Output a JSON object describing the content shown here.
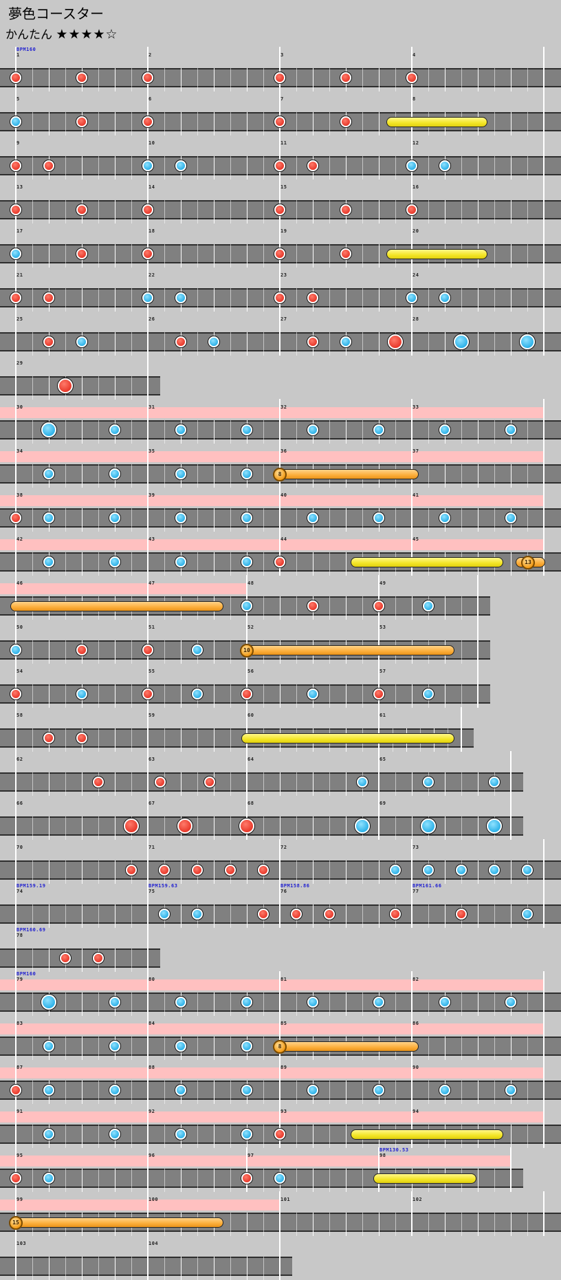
{
  "song": {
    "title": "夢色コースター",
    "difficulty": "かんたん",
    "stars": "★★★★☆"
  },
  "systems": [
    {
      "measures": [
        "1",
        "2",
        "3",
        "4"
      ],
      "bpm": [
        {
          "m": 0,
          "text": "BPM160"
        }
      ],
      "notes": [
        {
          "m": 0,
          "p": 0,
          "k": "d"
        },
        {
          "m": 0,
          "p": 0.5,
          "k": "d"
        },
        {
          "m": 1,
          "p": 0,
          "k": "d"
        },
        {
          "m": 2,
          "p": 0,
          "k": "d"
        },
        {
          "m": 2,
          "p": 0.5,
          "k": "d"
        },
        {
          "m": 3,
          "p": 0,
          "k": "d"
        }
      ]
    },
    {
      "measures": [
        "5",
        "6",
        "7",
        "8"
      ],
      "notes": [
        {
          "m": 0,
          "p": 0,
          "k": "k"
        },
        {
          "m": 0,
          "p": 0.5,
          "k": "d"
        },
        {
          "m": 1,
          "p": 0,
          "k": "d"
        },
        {
          "m": 2,
          "p": 0,
          "k": "d"
        },
        {
          "m": 2,
          "p": 0.5,
          "k": "d"
        }
      ],
      "rolls": [
        {
          "m": 2,
          "p": 0.85,
          "len": 0.68,
          "c": "y"
        }
      ]
    },
    {
      "measures": [
        "9",
        "10",
        "11",
        "12"
      ],
      "notes": [
        {
          "m": 0,
          "p": 0,
          "k": "d"
        },
        {
          "m": 0,
          "p": 0.25,
          "k": "d"
        },
        {
          "m": 1,
          "p": 0,
          "k": "k"
        },
        {
          "m": 1,
          "p": 0.25,
          "k": "k"
        },
        {
          "m": 2,
          "p": 0,
          "k": "d"
        },
        {
          "m": 2,
          "p": 0.25,
          "k": "d"
        },
        {
          "m": 3,
          "p": 0,
          "k": "k"
        },
        {
          "m": 3,
          "p": 0.25,
          "k": "k"
        }
      ]
    },
    {
      "measures": [
        "13",
        "14",
        "15",
        "16"
      ],
      "notes": [
        {
          "m": 0,
          "p": 0,
          "k": "d"
        },
        {
          "m": 0,
          "p": 0.5,
          "k": "d"
        },
        {
          "m": 1,
          "p": 0,
          "k": "d"
        },
        {
          "m": 2,
          "p": 0,
          "k": "d"
        },
        {
          "m": 2,
          "p": 0.5,
          "k": "d"
        },
        {
          "m": 3,
          "p": 0,
          "k": "d"
        }
      ]
    },
    {
      "measures": [
        "17",
        "18",
        "19",
        "20"
      ],
      "notes": [
        {
          "m": 0,
          "p": 0,
          "k": "k"
        },
        {
          "m": 0,
          "p": 0.5,
          "k": "d"
        },
        {
          "m": 1,
          "p": 0,
          "k": "d"
        },
        {
          "m": 2,
          "p": 0,
          "k": "d"
        },
        {
          "m": 2,
          "p": 0.5,
          "k": "d"
        }
      ],
      "rolls": [
        {
          "m": 2,
          "p": 0.85,
          "len": 0.68,
          "c": "y"
        }
      ]
    },
    {
      "measures": [
        "21",
        "22",
        "23",
        "24"
      ],
      "notes": [
        {
          "m": 0,
          "p": 0,
          "k": "d"
        },
        {
          "m": 0,
          "p": 0.25,
          "k": "d"
        },
        {
          "m": 1,
          "p": 0,
          "k": "k"
        },
        {
          "m": 1,
          "p": 0.25,
          "k": "k"
        },
        {
          "m": 2,
          "p": 0,
          "k": "d"
        },
        {
          "m": 2,
          "p": 0.25,
          "k": "d"
        },
        {
          "m": 3,
          "p": 0,
          "k": "k"
        },
        {
          "m": 3,
          "p": 0.25,
          "k": "k"
        }
      ]
    },
    {
      "measures": [
        "25",
        "26",
        "27",
        "28"
      ],
      "notes": [
        {
          "m": 0,
          "p": 0.25,
          "k": "d"
        },
        {
          "m": 0,
          "p": 0.5,
          "k": "k"
        },
        {
          "m": 1,
          "p": 0.25,
          "k": "d"
        },
        {
          "m": 1,
          "p": 0.5,
          "k": "k"
        },
        {
          "m": 2,
          "p": 0.25,
          "k": "d"
        },
        {
          "m": 2,
          "p": 0.5,
          "k": "k"
        },
        {
          "m": 2,
          "p": 0.875,
          "k": "D"
        },
        {
          "m": 3,
          "p": 0.375,
          "k": "K"
        },
        {
          "m": 3,
          "p": 0.875,
          "k": "K"
        }
      ]
    },
    {
      "measures": [
        "29"
      ],
      "notes": [
        {
          "m": 0,
          "p": 0.375,
          "k": "D"
        }
      ]
    },
    {
      "measures": [
        "30",
        "31",
        "32",
        "33"
      ],
      "gogo": [
        [
          0,
          4
        ]
      ],
      "notes": [
        {
          "m": 0,
          "p": 0.25,
          "k": "K"
        },
        {
          "m": 0,
          "p": 0.75,
          "k": "k"
        },
        {
          "m": 1,
          "p": 0.25,
          "k": "k"
        },
        {
          "m": 1,
          "p": 0.75,
          "k": "k"
        },
        {
          "m": 2,
          "p": 0.25,
          "k": "k"
        },
        {
          "m": 2,
          "p": 0.75,
          "k": "k"
        },
        {
          "m": 3,
          "p": 0.25,
          "k": "k"
        },
        {
          "m": 3,
          "p": 0.75,
          "k": "k"
        }
      ]
    },
    {
      "measures": [
        "34",
        "35",
        "36",
        "37"
      ],
      "gogo": [
        [
          0,
          4
        ]
      ],
      "notes": [
        {
          "m": 0,
          "p": 0.25,
          "k": "k"
        },
        {
          "m": 0,
          "p": 0.75,
          "k": "k"
        },
        {
          "m": 1,
          "p": 0.25,
          "k": "k"
        },
        {
          "m": 1,
          "p": 0.75,
          "k": "k"
        }
      ],
      "balloons": [
        {
          "m": 2,
          "p": 0,
          "len": 1.05,
          "n": "8"
        }
      ]
    },
    {
      "measures": [
        "38",
        "39",
        "40",
        "41"
      ],
      "gogo": [
        [
          0,
          4
        ]
      ],
      "notes": [
        {
          "m": 0,
          "p": 0,
          "k": "d"
        },
        {
          "m": 0,
          "p": 0.25,
          "k": "k"
        },
        {
          "m": 0,
          "p": 0.75,
          "k": "k"
        },
        {
          "m": 1,
          "p": 0.25,
          "k": "k"
        },
        {
          "m": 1,
          "p": 0.75,
          "k": "k"
        },
        {
          "m": 2,
          "p": 0.25,
          "k": "k"
        },
        {
          "m": 2,
          "p": 0.75,
          "k": "k"
        },
        {
          "m": 3,
          "p": 0.25,
          "k": "k"
        },
        {
          "m": 3,
          "p": 0.75,
          "k": "k"
        }
      ]
    },
    {
      "measures": [
        "42",
        "43",
        "44",
        "45"
      ],
      "gogo": [
        [
          0,
          4
        ]
      ],
      "notes": [
        {
          "m": 0,
          "p": 0.25,
          "k": "k"
        },
        {
          "m": 0,
          "p": 0.75,
          "k": "k"
        },
        {
          "m": 1,
          "p": 0.25,
          "k": "k"
        },
        {
          "m": 1,
          "p": 0.75,
          "k": "k"
        },
        {
          "m": 2,
          "p": 0,
          "k": "d"
        }
      ],
      "rolls": [
        {
          "m": 2,
          "p": 0.58,
          "len": 1.07,
          "c": "y"
        },
        {
          "m": 3,
          "p": 0.83,
          "len": 0.14,
          "c": "o"
        }
      ],
      "balloons": [
        {
          "m": 3,
          "p": 0.88,
          "len": 0,
          "n": "13"
        }
      ]
    },
    {
      "measures": [
        "46",
        "47",
        "48",
        "49"
      ],
      "widths": [
        1,
        0.75,
        1,
        0.75
      ],
      "gogo": [
        [
          0,
          1.75
        ]
      ],
      "notes": [
        {
          "m": 2,
          "p": 0,
          "k": "k"
        },
        {
          "m": 2,
          "p": 0.5,
          "k": "d"
        },
        {
          "m": 3,
          "p": 0,
          "k": "d"
        },
        {
          "m": 3,
          "p": 0.5,
          "k": "k"
        }
      ],
      "rolls": [
        {
          "m": 0,
          "p": 0,
          "len": 1.53,
          "c": "o"
        }
      ]
    },
    {
      "measures": [
        "50",
        "51",
        "52",
        "53"
      ],
      "widths": [
        1,
        0.75,
        1,
        0.75
      ],
      "notes": [
        {
          "m": 0,
          "p": 0,
          "k": "k"
        },
        {
          "m": 0,
          "p": 0.5,
          "k": "d"
        },
        {
          "m": 1,
          "p": 0,
          "k": "d"
        },
        {
          "m": 1,
          "p": 0.5,
          "k": "k"
        }
      ],
      "rolls": [
        {
          "m": 2,
          "p": 0,
          "len": 1.53,
          "c": "o"
        }
      ],
      "balloons": [
        {
          "m": 2,
          "p": 0,
          "len": 0,
          "n": "10"
        }
      ]
    },
    {
      "measures": [
        "54",
        "55",
        "56",
        "57"
      ],
      "widths": [
        1,
        0.75,
        1,
        0.75
      ],
      "notes": [
        {
          "m": 0,
          "p": 0,
          "k": "d"
        },
        {
          "m": 0,
          "p": 0.5,
          "k": "k"
        },
        {
          "m": 1,
          "p": 0,
          "k": "d"
        },
        {
          "m": 1,
          "p": 0.5,
          "k": "k"
        },
        {
          "m": 2,
          "p": 0,
          "k": "d"
        },
        {
          "m": 2,
          "p": 0.5,
          "k": "k"
        },
        {
          "m": 3,
          "p": 0,
          "k": "d"
        },
        {
          "m": 3,
          "p": 0.5,
          "k": "k"
        }
      ]
    },
    {
      "measures": [
        "58",
        "59",
        "60",
        "61"
      ],
      "widths": [
        1,
        0.75,
        1,
        0.625
      ],
      "notes": [
        {
          "m": 0,
          "p": 0.25,
          "k": "d"
        },
        {
          "m": 0,
          "p": 0.5,
          "k": "d"
        }
      ],
      "rolls": [
        {
          "m": 2,
          "p": 0,
          "len": 1.53,
          "c": "y"
        }
      ]
    },
    {
      "measures": [
        "62",
        "63",
        "64",
        "65"
      ],
      "widths": [
        1,
        0.75,
        1,
        1
      ],
      "notes": [
        {
          "m": 0,
          "p": 0.625,
          "k": "d"
        },
        {
          "m": 1,
          "p": 0.125,
          "k": "d"
        },
        {
          "m": 1,
          "p": 0.625,
          "k": "d"
        },
        {
          "m": 2,
          "p": 0.875,
          "k": "k"
        },
        {
          "m": 3,
          "p": 0.375,
          "k": "k"
        },
        {
          "m": 3,
          "p": 0.875,
          "k": "k"
        }
      ]
    },
    {
      "measures": [
        "66",
        "67",
        "68",
        "69"
      ],
      "widths": [
        1,
        0.75,
        1,
        1
      ],
      "notes": [
        {
          "m": 0,
          "p": 0.875,
          "k": "D"
        },
        {
          "m": 1,
          "p": 0.375,
          "k": "D"
        },
        {
          "m": 2,
          "p": 0,
          "k": "D"
        },
        {
          "m": 2,
          "p": 0.875,
          "k": "K"
        },
        {
          "m": 3,
          "p": 0.375,
          "k": "K"
        },
        {
          "m": 3,
          "p": 0.875,
          "k": "K"
        }
      ]
    },
    {
      "measures": [
        "70",
        "71",
        "72",
        "73"
      ],
      "notes": [
        {
          "m": 0,
          "p": 0.875,
          "k": "d"
        },
        {
          "m": 1,
          "p": 0.125,
          "k": "d"
        },
        {
          "m": 1,
          "p": 0.375,
          "k": "d"
        },
        {
          "m": 1,
          "p": 0.625,
          "k": "d"
        },
        {
          "m": 1,
          "p": 0.875,
          "k": "d"
        },
        {
          "m": 2,
          "p": 0.875,
          "k": "k"
        },
        {
          "m": 3,
          "p": 0.125,
          "k": "k"
        },
        {
          "m": 3,
          "p": 0.375,
          "k": "k"
        },
        {
          "m": 3,
          "p": 0.625,
          "k": "k"
        },
        {
          "m": 3,
          "p": 0.875,
          "k": "k"
        }
      ]
    },
    {
      "measures": [
        "74",
        "75",
        "76",
        "77"
      ],
      "bpm": [
        {
          "m": 0,
          "text": "BPM159.19"
        },
        {
          "m": 1,
          "text": "BPM159.63"
        },
        {
          "m": 2,
          "text": "BPM158.86"
        },
        {
          "m": 3,
          "text": "BPM161.66"
        }
      ],
      "notes": [
        {
          "m": 1,
          "p": 0.125,
          "k": "k"
        },
        {
          "m": 1,
          "p": 0.375,
          "k": "k"
        },
        {
          "m": 1,
          "p": 0.875,
          "k": "d"
        },
        {
          "m": 2,
          "p": 0.125,
          "k": "d"
        },
        {
          "m": 2,
          "p": 0.375,
          "k": "d"
        },
        {
          "m": 2,
          "p": 0.875,
          "k": "d"
        },
        {
          "m": 3,
          "p": 0.375,
          "k": "d"
        },
        {
          "m": 3,
          "p": 0.875,
          "k": "k"
        }
      ]
    },
    {
      "measures": [
        "78"
      ],
      "bpm": [
        {
          "m": 0,
          "text": "BPM160.69"
        }
      ],
      "notes": [
        {
          "m": 0,
          "p": 0.375,
          "k": "d"
        },
        {
          "m": 0,
          "p": 0.625,
          "k": "d"
        }
      ]
    },
    {
      "measures": [
        "79",
        "80",
        "81",
        "82"
      ],
      "gogo": [
        [
          0,
          4
        ]
      ],
      "bpm": [
        {
          "m": 0,
          "text": "BPM160"
        }
      ],
      "notes": [
        {
          "m": 0,
          "p": 0.25,
          "k": "K"
        },
        {
          "m": 0,
          "p": 0.75,
          "k": "k"
        },
        {
          "m": 1,
          "p": 0.25,
          "k": "k"
        },
        {
          "m": 1,
          "p": 0.75,
          "k": "k"
        },
        {
          "m": 2,
          "p": 0.25,
          "k": "k"
        },
        {
          "m": 2,
          "p": 0.75,
          "k": "k"
        },
        {
          "m": 3,
          "p": 0.25,
          "k": "k"
        },
        {
          "m": 3,
          "p": 0.75,
          "k": "k"
        }
      ]
    },
    {
      "measures": [
        "83",
        "84",
        "85",
        "86"
      ],
      "gogo": [
        [
          0,
          4
        ]
      ],
      "notes": [
        {
          "m": 0,
          "p": 0.25,
          "k": "k"
        },
        {
          "m": 0,
          "p": 0.75,
          "k": "k"
        },
        {
          "m": 1,
          "p": 0.25,
          "k": "k"
        },
        {
          "m": 1,
          "p": 0.75,
          "k": "k"
        }
      ],
      "balloons": [
        {
          "m": 2,
          "p": 0,
          "len": 1.05,
          "n": "8"
        }
      ]
    },
    {
      "measures": [
        "87",
        "88",
        "89",
        "90"
      ],
      "gogo": [
        [
          0,
          4
        ]
      ],
      "notes": [
        {
          "m": 0,
          "p": 0,
          "k": "d"
        },
        {
          "m": 0,
          "p": 0.25,
          "k": "k"
        },
        {
          "m": 0,
          "p": 0.75,
          "k": "k"
        },
        {
          "m": 1,
          "p": 0.25,
          "k": "k"
        },
        {
          "m": 1,
          "p": 0.75,
          "k": "k"
        },
        {
          "m": 2,
          "p": 0.25,
          "k": "k"
        },
        {
          "m": 2,
          "p": 0.75,
          "k": "k"
        },
        {
          "m": 3,
          "p": 0.25,
          "k": "k"
        },
        {
          "m": 3,
          "p": 0.75,
          "k": "k"
        }
      ]
    },
    {
      "measures": [
        "91",
        "92",
        "93",
        "94"
      ],
      "gogo": [
        [
          0,
          4
        ]
      ],
      "notes": [
        {
          "m": 0,
          "p": 0.25,
          "k": "k"
        },
        {
          "m": 0,
          "p": 0.75,
          "k": "k"
        },
        {
          "m": 1,
          "p": 0.25,
          "k": "k"
        },
        {
          "m": 1,
          "p": 0.75,
          "k": "k"
        },
        {
          "m": 2,
          "p": 0,
          "k": "d"
        }
      ],
      "rolls": [
        {
          "m": 2,
          "p": 0.58,
          "len": 1.07,
          "c": "y"
        }
      ]
    },
    {
      "measures": [
        "95",
        "96",
        "97",
        "98"
      ],
      "widths": [
        1,
        0.75,
        1,
        1
      ],
      "gogo": [
        [
          0,
          3.75
        ]
      ],
      "bpm": [
        {
          "m": 3,
          "text": "BPM130.53"
        }
      ],
      "notes": [
        {
          "m": 0,
          "p": 0,
          "k": "d"
        },
        {
          "m": 0,
          "p": 0.25,
          "k": "k"
        },
        {
          "m": 2,
          "p": 0,
          "k": "d"
        },
        {
          "m": 2,
          "p": 0.25,
          "k": "k"
        }
      ],
      "rolls": [
        {
          "m": 3,
          "p": 0,
          "len": 0.7,
          "c": "y"
        }
      ]
    },
    {
      "measures": [
        "99",
        "100",
        "101",
        "102"
      ],
      "gogo": [
        [
          0,
          2
        ]
      ],
      "rolls": [
        {
          "m": 0,
          "p": 0,
          "len": 1.53,
          "c": "o"
        }
      ],
      "balloons": [
        {
          "m": 0,
          "p": 0,
          "len": 0,
          "n": "15"
        }
      ]
    },
    {
      "measures": [
        "103",
        "104"
      ],
      "widths": [
        1,
        1
      ],
      "notes": []
    }
  ]
}
